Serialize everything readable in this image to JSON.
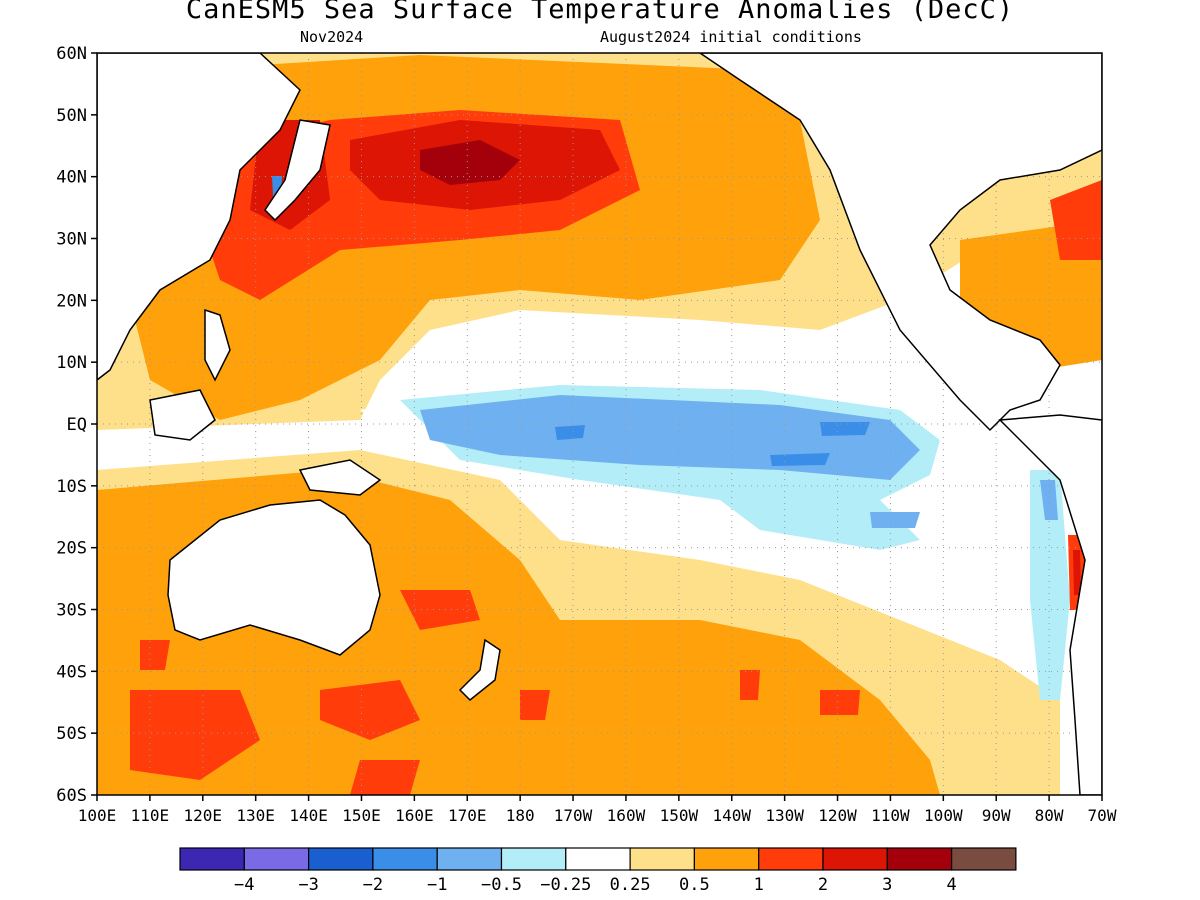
{
  "header": {
    "title": "CanESM5 Sea Surface Temperature Anomalies (DecC)",
    "subtitle_left": "Nov2024",
    "subtitle_right": "August2024 initial conditions"
  },
  "axes": {
    "lat_labels": [
      "60N",
      "50N",
      "40N",
      "30N",
      "20N",
      "10N",
      "EQ",
      "10S",
      "20S",
      "30S",
      "40S",
      "50S",
      "60S"
    ],
    "lon_labels": [
      "100E",
      "110E",
      "120E",
      "130E",
      "140E",
      "150E",
      "160E",
      "170E",
      "180",
      "170W",
      "160W",
      "150W",
      "140W",
      "130W",
      "120W",
      "110W",
      "100W",
      "90W",
      "80W",
      "70W"
    ]
  },
  "colorbar": {
    "colors": [
      "#3c27b2",
      "#7b6ae6",
      "#1a5fcf",
      "#3a8ee8",
      "#6fb1f0",
      "#b3eef8",
      "#ffffff",
      "#ffe08a",
      "#ffa10a",
      "#ff3c0a",
      "#dc1505",
      "#a3000b",
      "#7a4b3f"
    ],
    "labels": [
      "−4",
      "−3",
      "−2",
      "−1",
      "−0.5",
      "−0.25",
      "0.25",
      "0.5",
      "1",
      "2",
      "3",
      "4"
    ]
  },
  "map": {
    "lat_range": [
      "60N",
      "60S"
    ],
    "lon_range": [
      "100E",
      "70W"
    ],
    "grid": "dotted",
    "coastlines": true
  }
}
